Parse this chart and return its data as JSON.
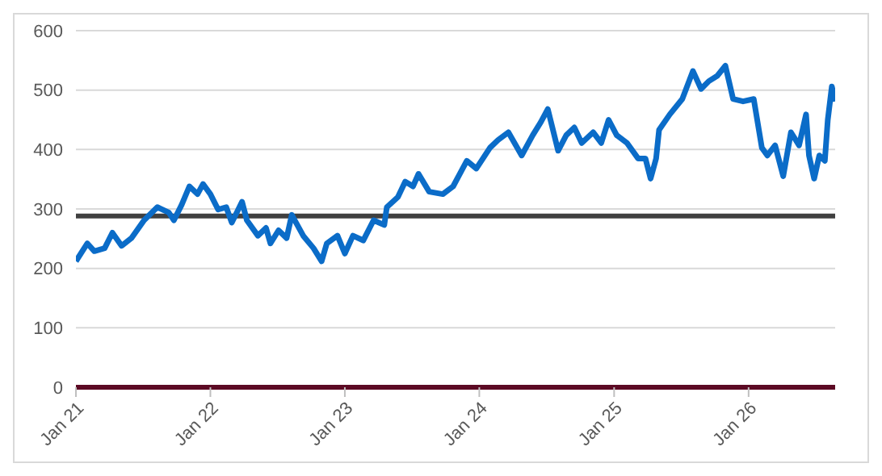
{
  "chart_data": {
    "type": "line",
    "x": [
      "2021-01-01",
      "2021-02-01",
      "2021-02-20",
      "2021-03-20",
      "2021-04-10",
      "2021-05-05",
      "2021-06-01",
      "2021-07-05",
      "2021-08-10",
      "2021-09-10",
      "2021-09-24",
      "2021-10-15",
      "2021-11-05",
      "2021-11-27",
      "2021-12-12",
      "2022-01-01",
      "2022-01-22",
      "2022-02-13",
      "2022-02-28",
      "2022-03-28",
      "2022-04-10",
      "2022-05-10",
      "2022-06-01",
      "2022-06-13",
      "2022-07-05",
      "2022-07-27",
      "2022-08-10",
      "2022-09-10",
      "2022-10-08",
      "2022-10-30",
      "2022-11-13",
      "2022-12-12",
      "2023-01-01",
      "2023-01-23",
      "2023-02-20",
      "2023-03-20",
      "2023-04-18",
      "2023-04-25",
      "2023-05-25",
      "2023-06-14",
      "2023-07-05",
      "2023-07-20",
      "2023-08-18",
      "2023-09-24",
      "2023-10-22",
      "2023-11-28",
      "2023-12-24",
      "2024-01-30",
      "2024-02-21",
      "2024-03-20",
      "2024-04-25",
      "2024-05-25",
      "2024-06-16",
      "2024-07-05",
      "2024-08-02",
      "2024-08-24",
      "2024-09-15",
      "2024-10-05",
      "2024-11-05",
      "2024-11-27",
      "2024-12-17",
      "2025-01-08",
      "2025-02-05",
      "2025-03-07",
      "2025-03-27",
      "2025-04-10",
      "2025-04-25",
      "2025-05-03",
      "2025-06-01",
      "2025-07-05",
      "2025-08-03",
      "2025-08-25",
      "2025-09-15",
      "2025-10-08",
      "2025-10-30",
      "2025-11-20",
      "2025-12-17",
      "2026-01-15",
      "2026-02-06",
      "2026-02-21",
      "2026-03-14",
      "2026-04-05",
      "2026-04-26",
      "2026-05-18",
      "2026-06-06",
      "2026-06-14",
      "2026-06-28",
      "2026-07-12",
      "2026-07-27",
      "2026-08-04",
      "2026-08-15",
      "2026-08-24"
    ],
    "series": [
      {
        "color": "#0b6cc8",
        "values": [
          212,
          242,
          229,
          234,
          260,
          238,
          251,
          281,
          303,
          294,
          281,
          307,
          338,
          325,
          342,
          325,
          299,
          303,
          277,
          312,
          281,
          255,
          268,
          242,
          264,
          251,
          290,
          255,
          234,
          212,
          242,
          255,
          225,
          255,
          247,
          281,
          273,
          303,
          320,
          346,
          338,
          359,
          329,
          325,
          338,
          381,
          368,
          403,
          416,
          429,
          390,
          424,
          446,
          468,
          398,
          424,
          437,
          411,
          429,
          411,
          450,
          424,
          411,
          385,
          385,
          351,
          385,
          433,
          459,
          485,
          532,
          502,
          515,
          524,
          541,
          485,
          481,
          485,
          403,
          390,
          407,
          355,
          429,
          407,
          459,
          390,
          351,
          390,
          381,
          450,
          506,
          481
        ]
      }
    ],
    "xlim": [
      "2021-01-01",
      "2026-08-24"
    ],
    "xticks": [
      {
        "value": "2021-01-01",
        "label": "Jan 21"
      },
      {
        "value": "2022-01-01",
        "label": "Jan 22"
      },
      {
        "value": "2023-01-01",
        "label": "Jan 23"
      },
      {
        "value": "2024-01-01",
        "label": "Jan 24"
      },
      {
        "value": "2025-01-01",
        "label": "Jan 25"
      },
      {
        "value": "2026-01-01",
        "label": "Jan 26"
      }
    ],
    "ylim": [
      0,
      600
    ],
    "yticks": [
      0,
      100,
      200,
      300,
      400,
      500,
      600
    ],
    "ref_lines": [
      {
        "axis": "y",
        "value": 288,
        "color": "#404040"
      }
    ],
    "grid": "y",
    "marker": "none",
    "line_style": "solid",
    "legend": false
  }
}
